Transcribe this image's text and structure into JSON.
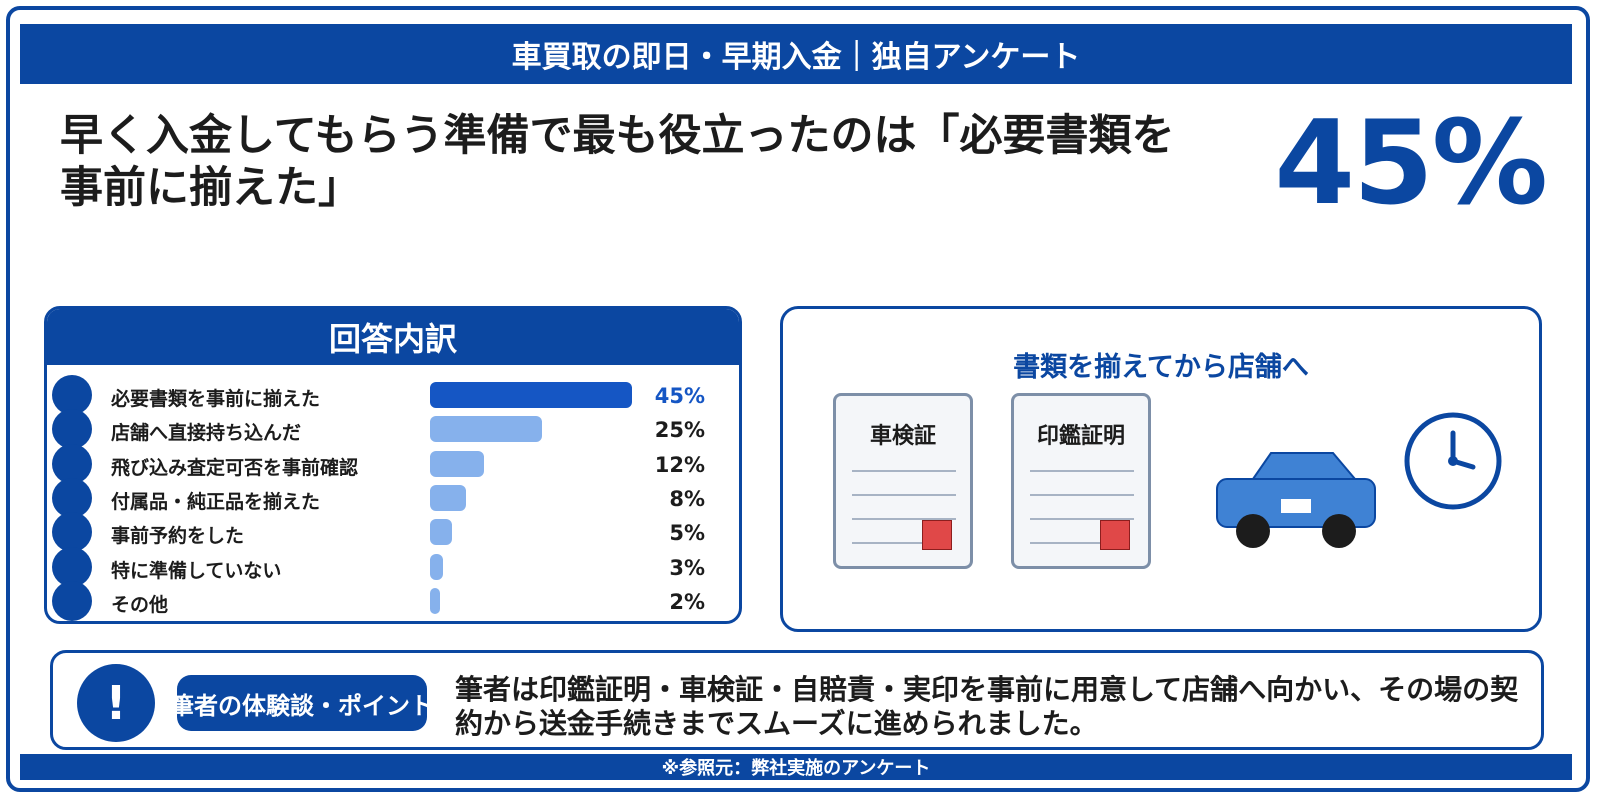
{
  "header": {
    "title": "車買取の即日・早期入金｜独自アンケート"
  },
  "headline": {
    "text": "早く入金してもらう準備で最も役立ったのは「必要書類を事前に揃えた」",
    "big_value": "45%"
  },
  "breakdown": {
    "title": "回答内訳"
  },
  "chart_data": {
    "type": "bar",
    "title": "回答内訳",
    "categories": [
      "必要書類を事前に揃えた",
      "店舗へ直接持ち込んだ",
      "飛び込み査定可否を事前確認",
      "付属品・純正品を揃えた",
      "事前予約をした",
      "特に準備していない",
      "その他"
    ],
    "values": [
      45,
      25,
      12,
      8,
      5,
      3,
      2
    ],
    "labels": [
      "45%",
      "25%",
      "12%",
      "8%",
      "5%",
      "3%",
      "2%"
    ],
    "unit": "%",
    "xlim": [
      0,
      45
    ],
    "colors": {
      "highlight": "#1556c4",
      "default": "#86b1ec"
    }
  },
  "illustration": {
    "title": "書類を揃えてから店舗へ",
    "doc1_title": "車検証",
    "doc2_title": "印鑑証明"
  },
  "note": {
    "badge": "筆者の体験談・ポイント",
    "text": "筆者は印鑑証明・車検証・自賠責・実印を事前に用意して店舗へ向かい、その場の契約から送金手続きまでスムーズに進められました。"
  },
  "footer": {
    "source": "※参照元：弊社実施のアンケート"
  },
  "colors": {
    "primary": "#0b47a1",
    "stamp": "#e04848",
    "car": "#3f82d4"
  }
}
